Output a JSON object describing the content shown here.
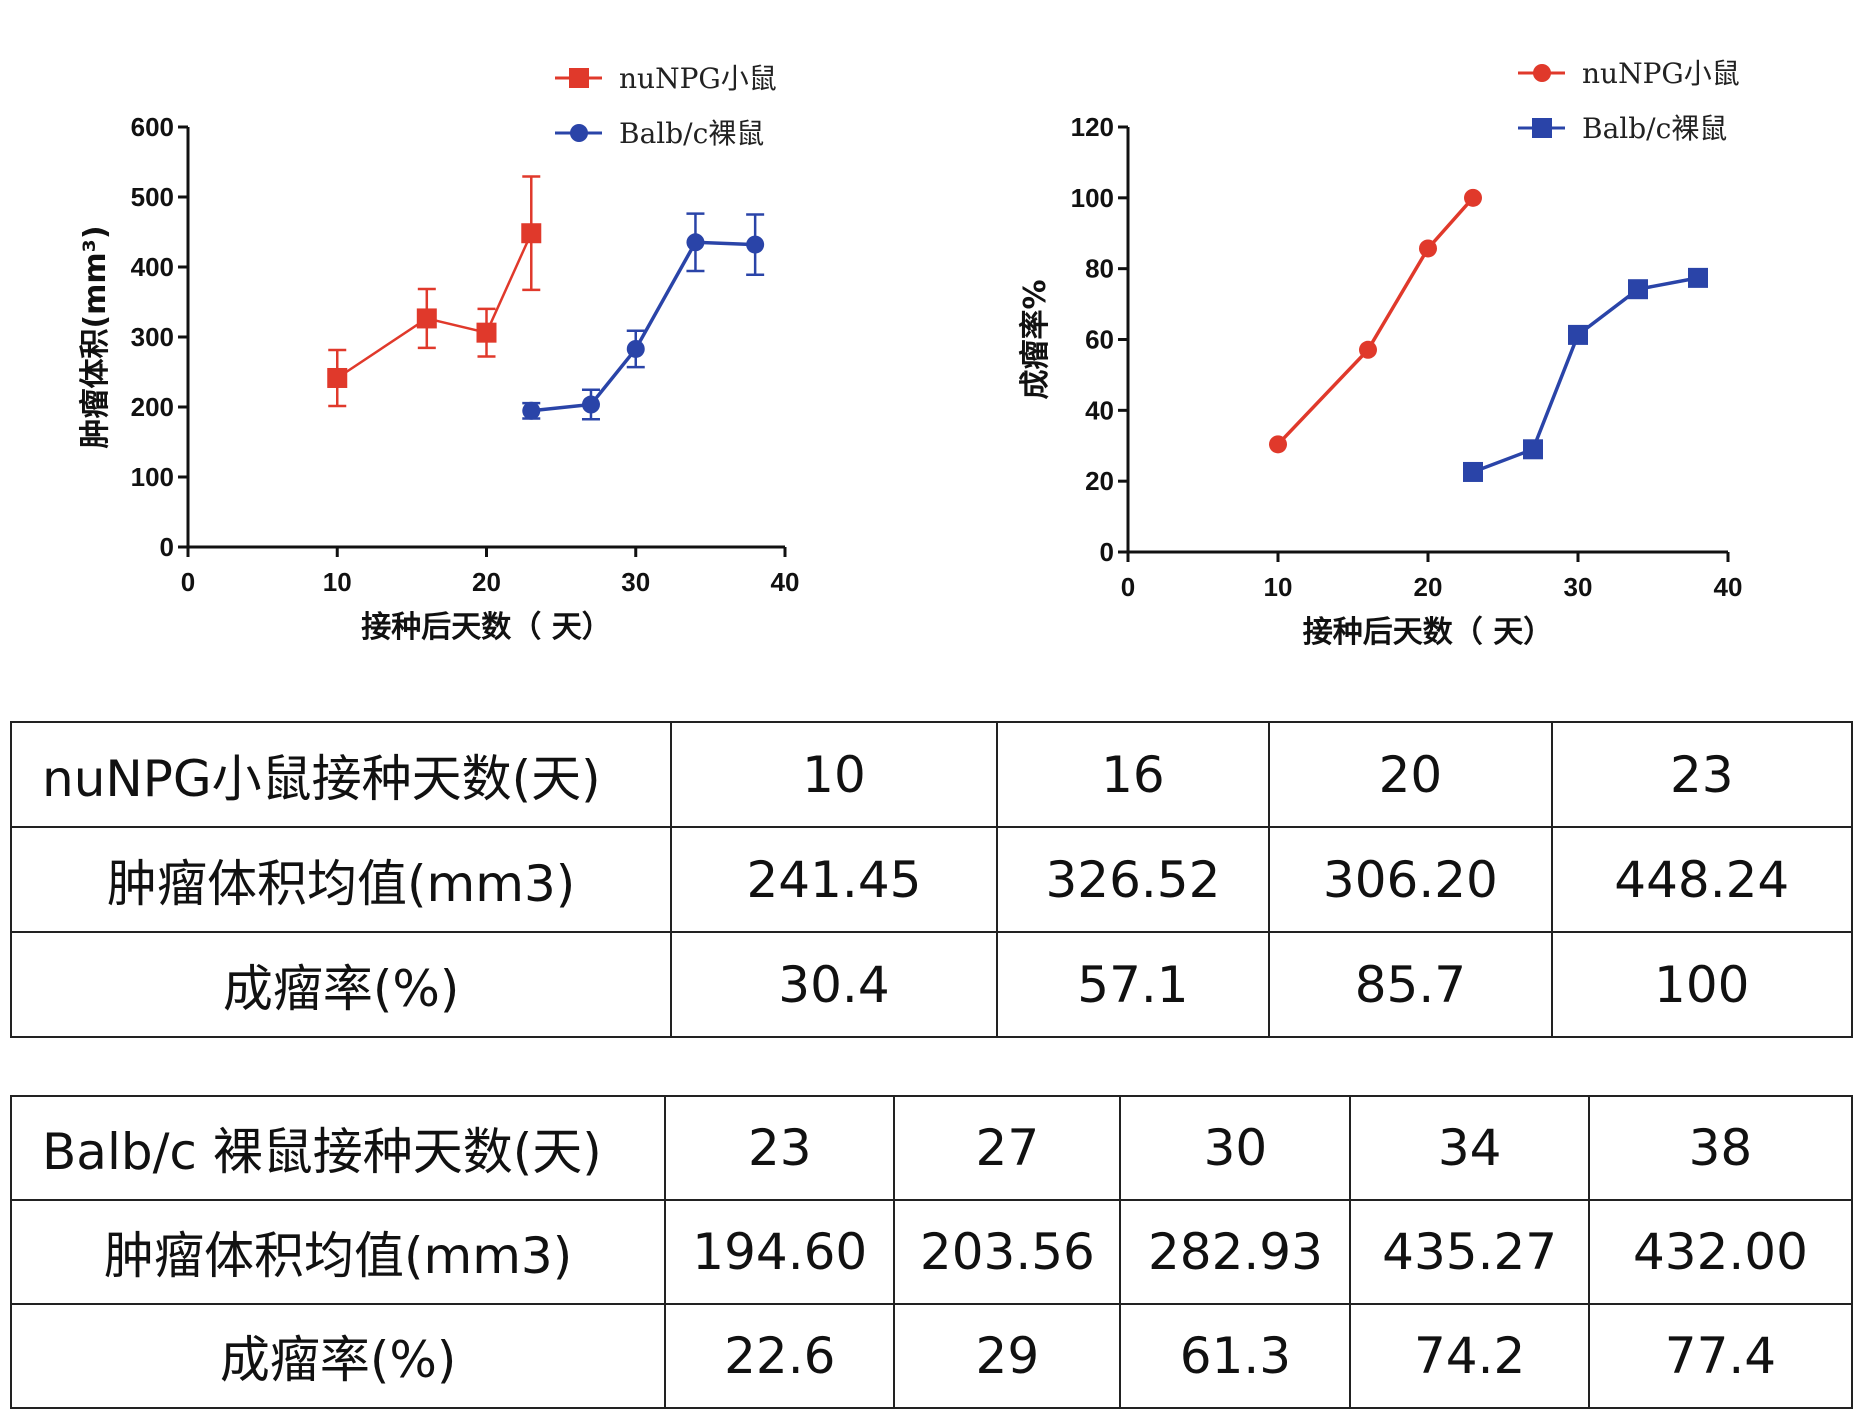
{
  "chart_data": [
    {
      "type": "line",
      "title": "",
      "xlabel": "接种后天数（ 天）",
      "ylabel": "肿瘤体积(mm³)",
      "xlim": [
        0,
        40
      ],
      "ylim": [
        0,
        600
      ],
      "xticks": [
        "0",
        "10",
        "20",
        "30",
        "40"
      ],
      "yticks": [
        "0",
        "100",
        "200",
        "300",
        "400",
        "500",
        "600"
      ],
      "legend": "top-right",
      "series": [
        {
          "name": "nuNPG小鼠",
          "color": "#e0392b",
          "marker": "square",
          "x": [
            10,
            16,
            20,
            23
          ],
          "y": [
            241.45,
            326.52,
            306.2,
            448.24
          ],
          "err": [
            40,
            42,
            34,
            81
          ]
        },
        {
          "name": "Balb/c裸鼠",
          "color": "#2a44a8",
          "marker": "circle",
          "x": [
            23,
            27,
            30,
            34,
            38
          ],
          "y": [
            194.6,
            203.56,
            282.93,
            435.27,
            432.0
          ],
          "err": [
            11,
            21,
            26,
            41,
            43
          ]
        }
      ]
    },
    {
      "type": "line",
      "title": "",
      "xlabel": "接种后天数（ 天）",
      "ylabel": "成瘤率%",
      "xlim": [
        0,
        40
      ],
      "ylim": [
        0,
        120
      ],
      "xticks": [
        "0",
        "10",
        "20",
        "30",
        "40"
      ],
      "yticks": [
        "0",
        "20",
        "40",
        "60",
        "80",
        "100",
        "120"
      ],
      "legend": "top-right",
      "series": [
        {
          "name": "nuNPG小鼠",
          "color": "#e0392b",
          "marker": "circle",
          "x": [
            10,
            16,
            20,
            23
          ],
          "y": [
            30.4,
            57.1,
            85.7,
            100
          ]
        },
        {
          "name": "Balb/c裸鼠",
          "color": "#2a44a8",
          "marker": "square",
          "x": [
            23,
            27,
            30,
            34,
            38
          ],
          "y": [
            22.6,
            29,
            61.3,
            74.2,
            77.4
          ]
        }
      ]
    }
  ],
  "table1": {
    "rows": [
      [
        "nuNPG小鼠接种天数(天)",
        "10",
        "16",
        "20",
        "23"
      ],
      [
        "肿瘤体积均值(mm3)",
        "241.45",
        "326.52",
        "306.20",
        "448.24"
      ],
      [
        "成瘤率(%)",
        "30.4",
        "57.1",
        "85.7",
        "100"
      ]
    ]
  },
  "table2": {
    "rows": [
      [
        "Balb/c 裸鼠接种天数(天)",
        "23",
        "27",
        "30",
        "34",
        "38"
      ],
      [
        "肿瘤体积均值(mm3)",
        "194.60",
        "203.56",
        "282.93",
        "435.27",
        "432.00"
      ],
      [
        "成瘤率(%)",
        "22.6",
        "29",
        "61.3",
        "74.2",
        "77.4"
      ]
    ]
  }
}
